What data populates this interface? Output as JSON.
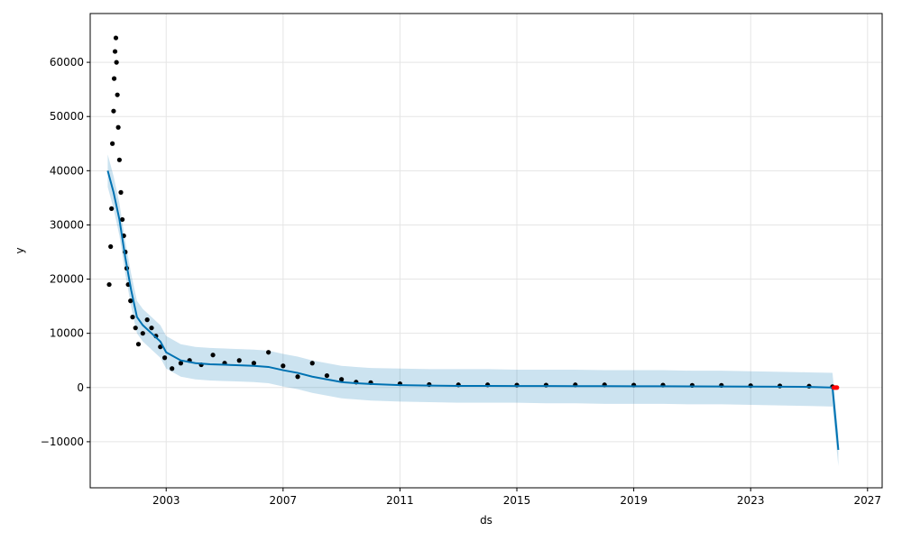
{
  "chart_data": {
    "type": "scatter",
    "title": "",
    "xlabel": "ds",
    "ylabel": "y",
    "xlim": [
      2000.4,
      2027.5
    ],
    "ylim": [
      -18500,
      69000
    ],
    "x_ticks": [
      2003,
      2007,
      2011,
      2015,
      2019,
      2023,
      2027
    ],
    "y_ticks": [
      -10000,
      0,
      10000,
      20000,
      30000,
      40000,
      50000,
      60000
    ],
    "grid": true,
    "colors": {
      "observed": "#000000",
      "forecast_line": "#0072B2",
      "uncertainty_band": "#0072B2",
      "future_points": "#ff0000"
    },
    "series": [
      {
        "kind": "observed",
        "style": "scatter",
        "x": [
          2001.05,
          2001.1,
          2001.13,
          2001.16,
          2001.2,
          2001.22,
          2001.25,
          2001.28,
          2001.3,
          2001.33,
          2001.36,
          2001.4,
          2001.45,
          2001.5,
          2001.55,
          2001.6,
          2001.65,
          2001.7,
          2001.78,
          2001.85,
          2001.95,
          2002.05,
          2002.2,
          2002.35,
          2002.5,
          2002.65,
          2002.8,
          2002.95,
          2003.2,
          2003.5,
          2003.8,
          2004.2,
          2004.6,
          2005.0,
          2005.5,
          2006.0,
          2006.5,
          2007.0,
          2007.5,
          2008.0,
          2008.5,
          2009.0,
          2009.5,
          2010.0,
          2011.0,
          2012.0,
          2013.0,
          2014.0,
          2015.0,
          2016.0,
          2017.0,
          2018.0,
          2019.0,
          2020.0,
          2021.0,
          2022.0,
          2023.0,
          2024.0,
          2025.0,
          2025.8
        ],
        "y": [
          19000,
          26000,
          33000,
          45000,
          51000,
          57000,
          62000,
          64500,
          60000,
          54000,
          48000,
          42000,
          36000,
          31000,
          28000,
          25000,
          22000,
          19000,
          16000,
          13000,
          11000,
          8000,
          10000,
          12500,
          11000,
          9500,
          7500,
          5500,
          3500,
          4500,
          5000,
          4200,
          6000,
          4500,
          5000,
          4500,
          6500,
          4000,
          2000,
          4500,
          2200,
          1500,
          1000,
          900,
          700,
          550,
          500,
          500,
          450,
          450,
          500,
          500,
          450,
          450,
          400,
          400,
          350,
          300,
          250,
          150
        ]
      },
      {
        "kind": "forecast",
        "style": "line",
        "x": [
          2001.0,
          2001.2,
          2001.4,
          2001.6,
          2001.8,
          2002.0,
          2002.2,
          2002.5,
          2002.8,
          2003.0,
          2003.5,
          2004.0,
          2004.5,
          2005.0,
          2005.5,
          2006.0,
          2006.5,
          2007.0,
          2007.5,
          2008.0,
          2008.5,
          2009.0,
          2009.5,
          2010.0,
          2011.0,
          2012.0,
          2013.0,
          2014.0,
          2015.0,
          2016.0,
          2017.0,
          2018.0,
          2019.0,
          2020.0,
          2021.0,
          2022.0,
          2023.0,
          2024.0,
          2025.0,
          2025.8,
          2026.0
        ],
        "y": [
          40000,
          36000,
          31000,
          24000,
          18000,
          13000,
          11500,
          10000,
          8500,
          6500,
          5000,
          4500,
          4300,
          4200,
          4100,
          4000,
          3800,
          3200,
          2700,
          2000,
          1500,
          1000,
          800,
          650,
          450,
          350,
          300,
          300,
          280,
          270,
          260,
          250,
          240,
          230,
          220,
          200,
          180,
          150,
          120,
          0,
          -11500
        ]
      },
      {
        "kind": "uncertainty",
        "style": "band",
        "x": [
          2001.0,
          2001.2,
          2001.4,
          2001.6,
          2001.8,
          2002.0,
          2002.2,
          2002.5,
          2002.8,
          2003.0,
          2003.5,
          2004.0,
          2004.5,
          2005.0,
          2005.5,
          2006.0,
          2006.5,
          2007.0,
          2007.5,
          2008.0,
          2008.5,
          2009.0,
          2009.5,
          2010.0,
          2011.0,
          2012.0,
          2013.0,
          2014.0,
          2015.0,
          2016.0,
          2017.0,
          2018.0,
          2019.0,
          2020.0,
          2021.0,
          2022.0,
          2023.0,
          2024.0,
          2025.0,
          2025.8,
          2026.0
        ],
        "lower": [
          37000,
          33000,
          28000,
          21000,
          15000,
          10000,
          8500,
          7000,
          5500,
          3500,
          2000,
          1500,
          1300,
          1200,
          1100,
          1000,
          800,
          200,
          -300,
          -1000,
          -1500,
          -2000,
          -2200,
          -2400,
          -2600,
          -2700,
          -2800,
          -2800,
          -2800,
          -2900,
          -2900,
          -3000,
          -3000,
          -3000,
          -3100,
          -3100,
          -3200,
          -3300,
          -3400,
          -3500,
          -14500
        ],
        "upper": [
          43000,
          39000,
          34000,
          27000,
          21000,
          16000,
          14500,
          13000,
          11500,
          9500,
          8000,
          7500,
          7300,
          7200,
          7100,
          7000,
          6800,
          6200,
          5700,
          5000,
          4500,
          4000,
          3800,
          3600,
          3500,
          3400,
          3400,
          3400,
          3300,
          3300,
          3300,
          3200,
          3200,
          3200,
          3100,
          3100,
          3000,
          2900,
          2800,
          2700,
          -8500
        ]
      },
      {
        "kind": "future",
        "style": "scatter",
        "x": [
          2025.85,
          2025.9,
          2025.95
        ],
        "y": [
          0,
          0,
          0
        ]
      }
    ]
  }
}
